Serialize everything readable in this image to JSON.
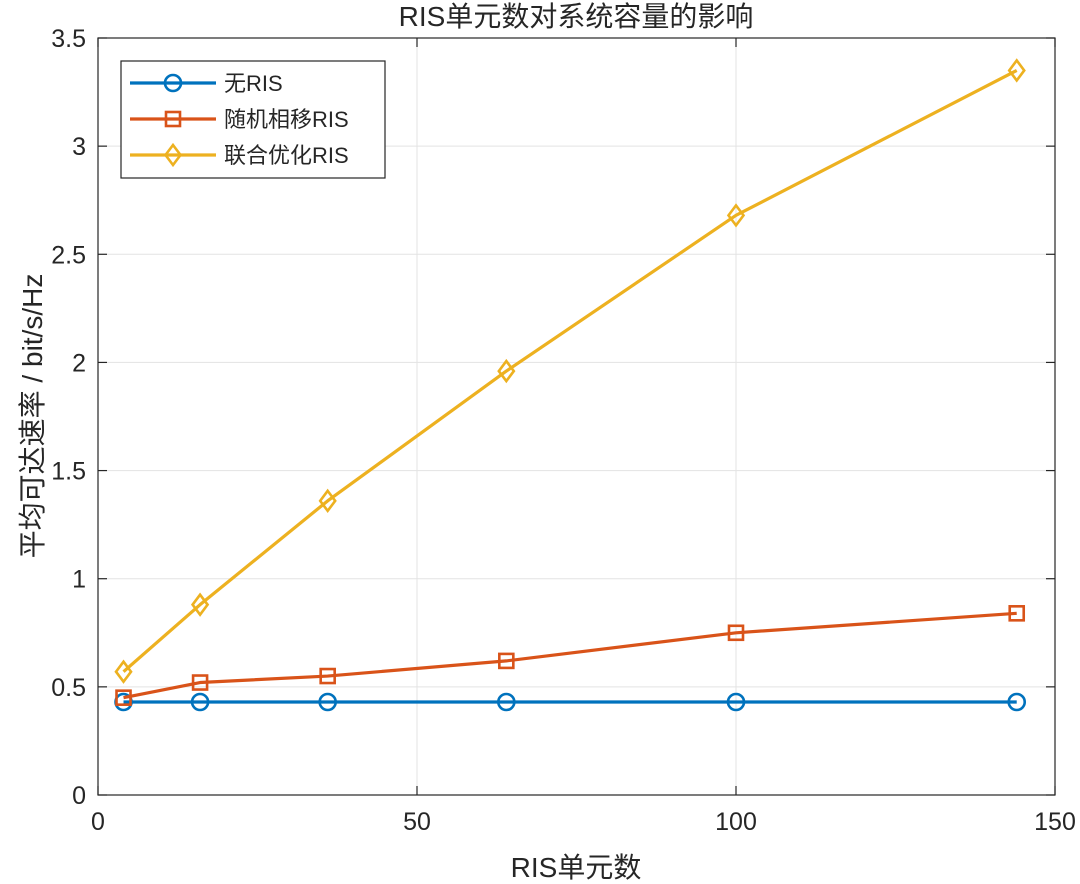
{
  "chart_data": {
    "type": "line",
    "title": "RIS单元数对系统容量的影响",
    "xlabel": "RIS单元数",
    "ylabel": "平均可达速率 / bit/s/Hz",
    "xlim": [
      0,
      150
    ],
    "ylim": [
      0,
      3.5
    ],
    "xticks": [
      0,
      50,
      100,
      150
    ],
    "yticks": [
      0,
      0.5,
      1,
      1.5,
      2,
      2.5,
      3,
      3.5
    ],
    "xtick_labels": [
      "0",
      "50",
      "100",
      "150"
    ],
    "ytick_labels": [
      "0",
      "0.5",
      "1",
      "1.5",
      "2",
      "2.5",
      "3",
      "3.5"
    ],
    "grid": true,
    "legend_position": "top-left",
    "x": [
      4,
      16,
      36,
      64,
      100,
      144
    ],
    "series": [
      {
        "name": "无RIS",
        "values": [
          0.43,
          0.43,
          0.43,
          0.43,
          0.43,
          0.43
        ],
        "color": "#0072BD",
        "marker": "circle"
      },
      {
        "name": "随机相移RIS",
        "values": [
          0.45,
          0.52,
          0.55,
          0.62,
          0.75,
          0.84
        ],
        "color": "#D95319",
        "marker": "square"
      },
      {
        "name": "联合优化RIS",
        "values": [
          0.57,
          0.88,
          1.36,
          1.96,
          2.68,
          3.35
        ],
        "color": "#EDB120",
        "marker": "diamond"
      }
    ]
  }
}
